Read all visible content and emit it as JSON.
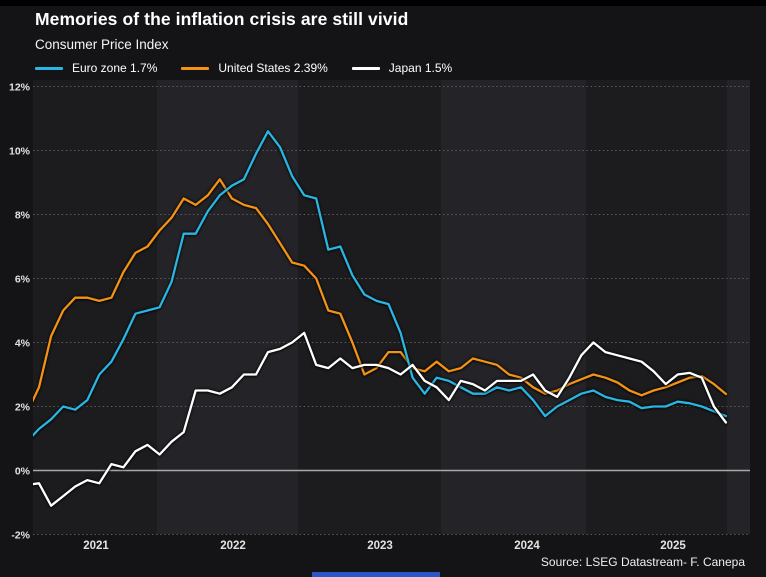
{
  "header": {
    "title": "Memories of the inflation crisis are still vivid",
    "subtitle": "Consumer Price Index"
  },
  "footer": {
    "source": "Source: LSEG Datastream- F. Canepa"
  },
  "colors": {
    "background": "#141416",
    "top_strip": "#000000",
    "plot_band_dark": "#1c1c1e",
    "plot_band_light": "#242428",
    "gridline": "#5a5a5a",
    "zero_line": "#a8a8a8",
    "tick_label": "#e2e2e2",
    "title_text": "#ffffff",
    "euro_zone_line": "#2ab5e2",
    "united_states_line": "#f29216",
    "japan_line": "#ffffff",
    "bottom_bar_blue": "#2b55c8"
  },
  "chart_data": {
    "type": "line",
    "title": "Memories of the inflation crisis are still vivid",
    "subtitle": "Consumer Price Index",
    "x_freq": "monthly",
    "x_start": "2021-02",
    "x_end": "2025-12",
    "ylim": [
      -2,
      12
    ],
    "grid": "horizontal-dotted",
    "legend_position": "top-left",
    "shaded_year_bands": [
      "2022",
      "2024",
      "2026"
    ],
    "y_ticks": [
      {
        "label": "12%",
        "value": 12
      },
      {
        "label": "10%",
        "value": 10
      },
      {
        "label": "8%",
        "value": 8
      },
      {
        "label": "6%",
        "value": 6
      },
      {
        "label": "4%",
        "value": 4
      },
      {
        "label": "2%",
        "value": 2
      },
      {
        "label": "0%",
        "value": 0
      },
      {
        "label": "-2%",
        "value": -2
      }
    ],
    "x_ticks": [
      "2021",
      "2022",
      "2023",
      "2024",
      "2025"
    ],
    "series": [
      {
        "name": "Euro zone",
        "legend_label": "Euro zone 1.7%",
        "latest_value": "1.7%",
        "color": "#2ab5e2",
        "z": 2,
        "values": [
          0.9,
          1.3,
          1.6,
          2.0,
          1.9,
          2.2,
          3.0,
          3.4,
          4.1,
          4.9,
          5.0,
          5.1,
          5.9,
          7.4,
          7.4,
          8.1,
          8.6,
          8.9,
          9.1,
          9.9,
          10.6,
          10.1,
          9.2,
          8.6,
          8.5,
          6.9,
          7.0,
          6.1,
          5.5,
          5.3,
          5.2,
          4.3,
          2.9,
          2.4,
          2.9,
          2.8,
          2.6,
          2.4,
          2.4,
          2.6,
          2.5,
          2.6,
          2.2,
          1.7,
          2.0,
          2.2,
          2.4,
          2.5,
          2.3,
          2.2,
          2.15,
          1.95,
          2.0,
          2.0,
          2.15,
          2.1,
          2.0,
          1.85,
          1.7
        ]
      },
      {
        "name": "United States",
        "legend_label": "United States 2.39%",
        "latest_value": "2.39%",
        "color": "#f29216",
        "z": 1,
        "values": [
          1.8,
          2.6,
          4.2,
          5.0,
          5.4,
          5.4,
          5.3,
          5.4,
          6.2,
          6.8,
          7.0,
          7.5,
          7.9,
          8.5,
          8.3,
          8.6,
          9.1,
          8.5,
          8.3,
          8.2,
          7.7,
          7.1,
          6.5,
          6.4,
          6.0,
          5.0,
          4.9,
          4.0,
          3.0,
          3.2,
          3.7,
          3.7,
          3.2,
          3.1,
          3.4,
          3.1,
          3.2,
          3.5,
          3.4,
          3.3,
          3.0,
          2.9,
          2.6,
          2.4,
          2.5,
          2.7,
          2.85,
          3.0,
          2.9,
          2.75,
          2.5,
          2.35,
          2.5,
          2.6,
          2.75,
          2.9,
          2.95,
          2.7,
          2.39
        ]
      },
      {
        "name": "Japan",
        "legend_label": "Japan 1.5%",
        "latest_value": "1.5%",
        "color": "#ffffff",
        "z": 3,
        "values": [
          -0.45,
          -0.4,
          -1.1,
          -0.8,
          -0.5,
          -0.3,
          -0.4,
          0.2,
          0.1,
          0.6,
          0.8,
          0.5,
          0.9,
          1.2,
          2.5,
          2.5,
          2.4,
          2.6,
          3.0,
          3.0,
          3.7,
          3.8,
          4.0,
          4.3,
          3.3,
          3.2,
          3.5,
          3.2,
          3.3,
          3.3,
          3.2,
          3.0,
          3.3,
          2.8,
          2.6,
          2.2,
          2.8,
          2.7,
          2.5,
          2.8,
          2.8,
          2.8,
          3.0,
          2.5,
          2.3,
          2.9,
          3.6,
          4.0,
          3.7,
          3.6,
          3.5,
          3.4,
          3.1,
          2.7,
          3.0,
          3.05,
          2.9,
          2.0,
          1.5
        ]
      }
    ]
  }
}
